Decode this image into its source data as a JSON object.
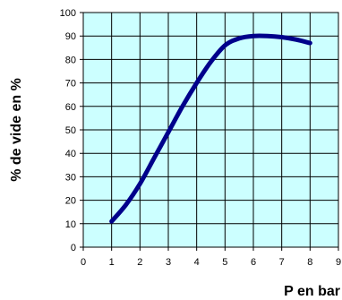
{
  "chart_data": {
    "type": "line",
    "title": "",
    "xlabel": "P en bar",
    "ylabel": "% de vide en %",
    "xlim": [
      0,
      9
    ],
    "ylim": [
      0,
      100
    ],
    "x_ticks": [
      "0",
      "1",
      "2",
      "3",
      "4",
      "5",
      "6",
      "7",
      "8",
      "9"
    ],
    "y_ticks": [
      "0",
      "10",
      "20",
      "30",
      "40",
      "50",
      "60",
      "70",
      "80",
      "90",
      "100"
    ],
    "grid": true,
    "legend": "none",
    "series": [
      {
        "x": [
          1,
          1.5,
          2,
          2.5,
          3,
          3.5,
          4,
          4.5,
          5,
          5.5,
          6,
          6.5,
          7,
          7.5,
          8
        ],
        "y": [
          11,
          18,
          27,
          38,
          49,
          60,
          70,
          79,
          86,
          89,
          90,
          90,
          89.5,
          88.5,
          87
        ]
      }
    ],
    "colors": {
      "plot_background": "#ccffff",
      "grid": "#000000",
      "line": "#00008b"
    }
  }
}
